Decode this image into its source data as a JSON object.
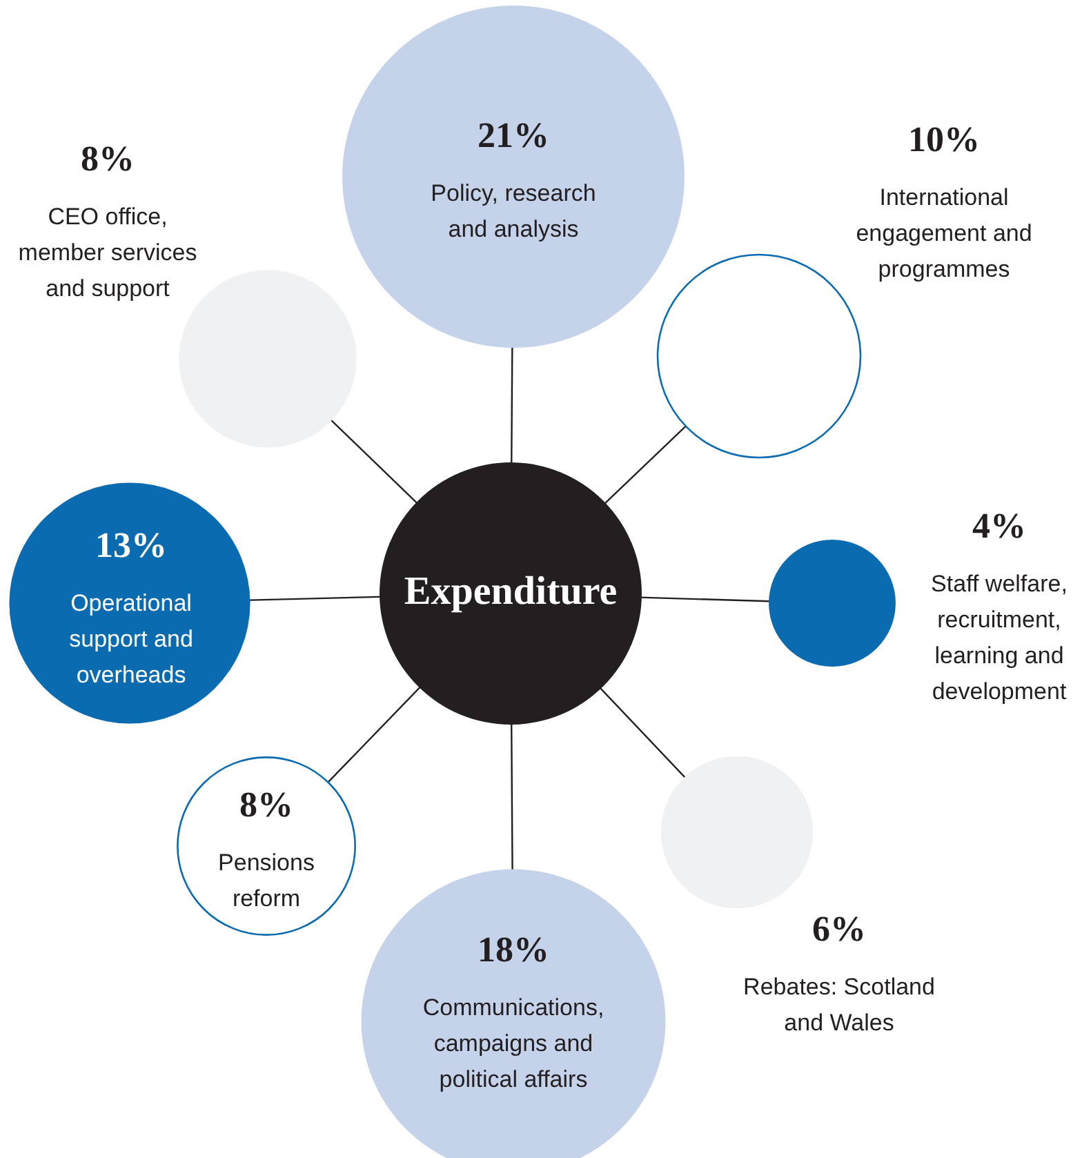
{
  "chart_data": {
    "type": "other",
    "title": "Expenditure",
    "categories": [
      "Policy, research and analysis",
      "International engagement and programmes",
      "Staff welfare, recruitment, learning and development",
      "Rebates: Scotland and Wales",
      "Communications, campaigns and political affairs",
      "Pensions reform",
      "Operational support and overheads",
      "CEO office, member services and support"
    ],
    "values": [
      21,
      10,
      4,
      6,
      18,
      8,
      13,
      8
    ],
    "value_labels": [
      "21%",
      "10%",
      "4%",
      "6%",
      "18%",
      "8%",
      "13%",
      "8%"
    ],
    "colors": [
      "#c5d3ea",
      "#ffffff",
      "#0a6bb0",
      "#f0f1f3",
      "#c5d3ea",
      "#ffffff",
      "#0a6bb0",
      "#f0f1f3"
    ]
  }
}
